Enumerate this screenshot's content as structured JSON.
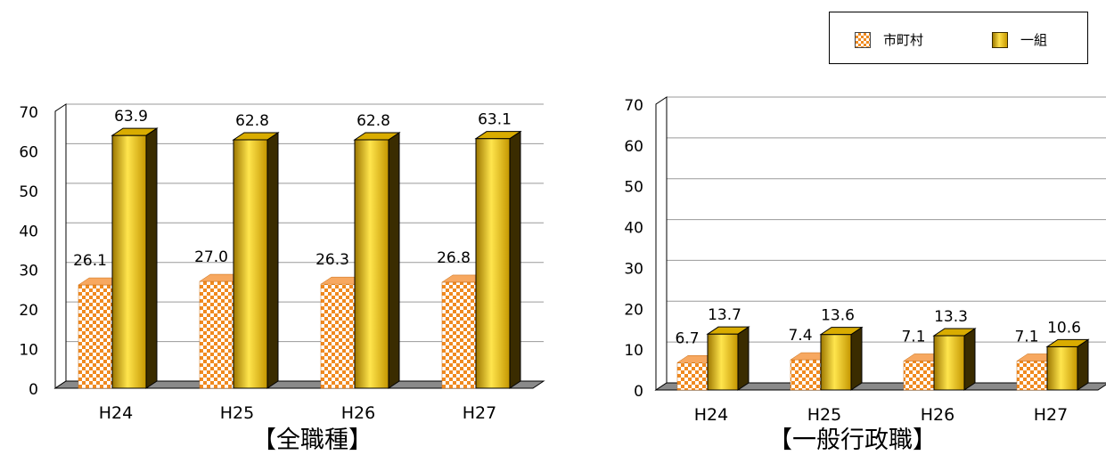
{
  "legend": {
    "items": [
      {
        "label": "市町村",
        "style": "checker",
        "color": "#f08a20"
      },
      {
        "label": "一組",
        "style": "gold",
        "color": "#e6b800"
      }
    ]
  },
  "chart_data": [
    {
      "type": "bar",
      "title": "【全職種】",
      "categories": [
        "H24",
        "H25",
        "H26",
        "H27"
      ],
      "ylim": [
        0,
        70
      ],
      "yticks": [
        0,
        10,
        20,
        30,
        40,
        50,
        60,
        70
      ],
      "series": [
        {
          "name": "市町村",
          "values": [
            26.1,
            27.0,
            26.3,
            26.8
          ],
          "labels": [
            "26.1",
            "27.0",
            "26.3",
            "26.8"
          ]
        },
        {
          "name": "一組",
          "values": [
            63.9,
            62.8,
            62.8,
            63.1
          ],
          "labels": [
            "63.9",
            "62.8",
            "62.8",
            "63.1"
          ]
        }
      ],
      "grid": true,
      "legend": "top-right"
    },
    {
      "type": "bar",
      "title": "【一般行政職】",
      "categories": [
        "H24",
        "H25",
        "H26",
        "H27"
      ],
      "ylim": [
        0,
        70
      ],
      "yticks": [
        0,
        10,
        20,
        30,
        40,
        50,
        60,
        70
      ],
      "series": [
        {
          "name": "市町村",
          "values": [
            6.7,
            7.4,
            7.1,
            7.1
          ],
          "labels": [
            "6.7",
            "7.4",
            "7.1",
            "7.1"
          ]
        },
        {
          "name": "一組",
          "values": [
            13.7,
            13.6,
            13.3,
            10.6
          ],
          "labels": [
            "13.7",
            "13.6",
            "13.3",
            "10.6"
          ]
        }
      ],
      "grid": true,
      "legend": "top-right"
    }
  ]
}
